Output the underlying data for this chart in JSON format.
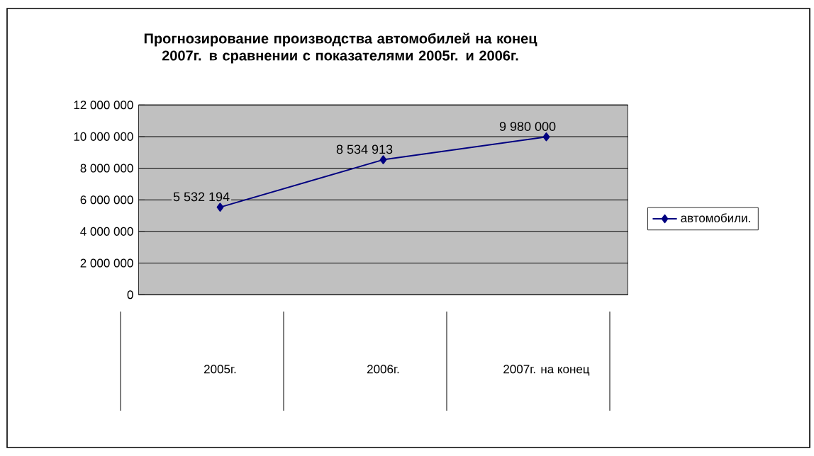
{
  "chart_data": {
    "type": "line",
    "title": "Прогнозирование производства автомобилей на конец 2007г. в сравнении с показателями 2005г. и 2006г.",
    "categories": [
      "2005г.",
      "2006г.",
      "2007г. на конец"
    ],
    "series": [
      {
        "name": "автомобили.",
        "color": "#000080",
        "values": [
          5532194,
          8534913,
          9980000
        ]
      }
    ],
    "value_labels": [
      "5 532 194",
      "8 534 913",
      "9 980 000"
    ],
    "ylim": [
      0,
      12000000
    ],
    "yticks": [
      0,
      {
        "value": 2000000,
        "label": "2 000 000"
      },
      {
        "value": 4000000,
        "label": "4 000 000"
      },
      {
        "value": 6000000,
        "label": "6 000 000"
      },
      {
        "value": 8000000,
        "label": "8 000 000"
      },
      {
        "value": 10000000,
        "label": "10 000 000"
      },
      {
        "value": 12000000,
        "label": "12 000 000"
      }
    ],
    "grid": "y",
    "legend": "right",
    "marker": "diamond",
    "line_style": "solid"
  }
}
